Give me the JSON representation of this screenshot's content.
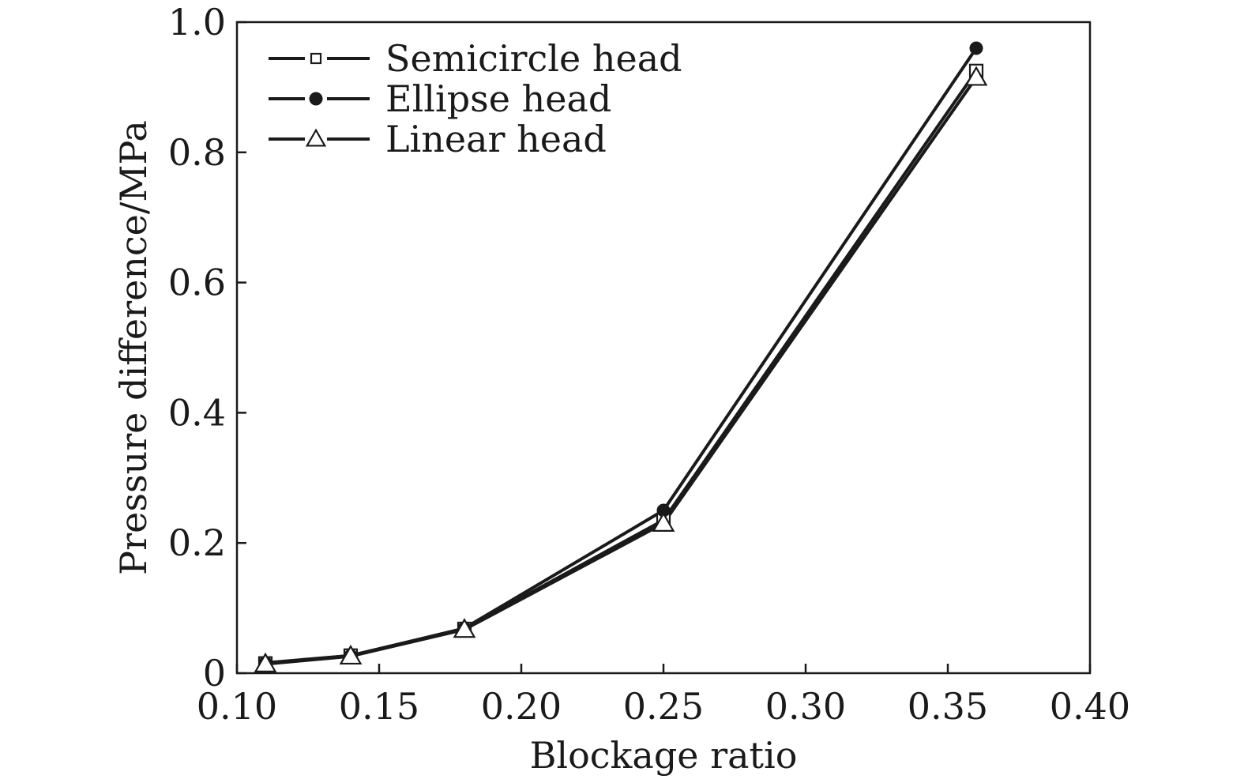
{
  "chart_data": {
    "type": "line",
    "title": "",
    "xlabel": "Blockage ratio",
    "ylabel": "Pressure difference/MPa",
    "xlim": [
      0.1,
      0.4
    ],
    "ylim": [
      0,
      1.0
    ],
    "x_ticks": [
      0.1,
      0.15,
      0.2,
      0.25,
      0.3,
      0.35,
      0.4
    ],
    "x_tick_labels": [
      "0.10",
      "0.15",
      "0.20",
      "0.25",
      "0.30",
      "0.35",
      "0.40"
    ],
    "y_ticks": [
      0,
      0.2,
      0.4,
      0.6,
      0.8,
      1.0
    ],
    "y_tick_labels": [
      "0",
      "0.2",
      "0.4",
      "0.6",
      "0.8",
      "1.0"
    ],
    "grid": false,
    "legend_position": "top-left",
    "series": [
      {
        "name": "Semicircle head",
        "marker": "open-square",
        "x": [
          0.11,
          0.14,
          0.18,
          0.25,
          0.36
        ],
        "y": [
          0.015,
          0.027,
          0.068,
          0.235,
          0.925
        ]
      },
      {
        "name": "Ellipse head",
        "marker": "filled-circle",
        "x": [
          0.11,
          0.14,
          0.18,
          0.25,
          0.36
        ],
        "y": [
          0.016,
          0.027,
          0.069,
          0.25,
          0.96
        ]
      },
      {
        "name": "Linear head",
        "marker": "open-triangle",
        "x": [
          0.11,
          0.14,
          0.18,
          0.25,
          0.36
        ],
        "y": [
          0.014,
          0.026,
          0.067,
          0.23,
          0.915
        ]
      }
    ]
  }
}
